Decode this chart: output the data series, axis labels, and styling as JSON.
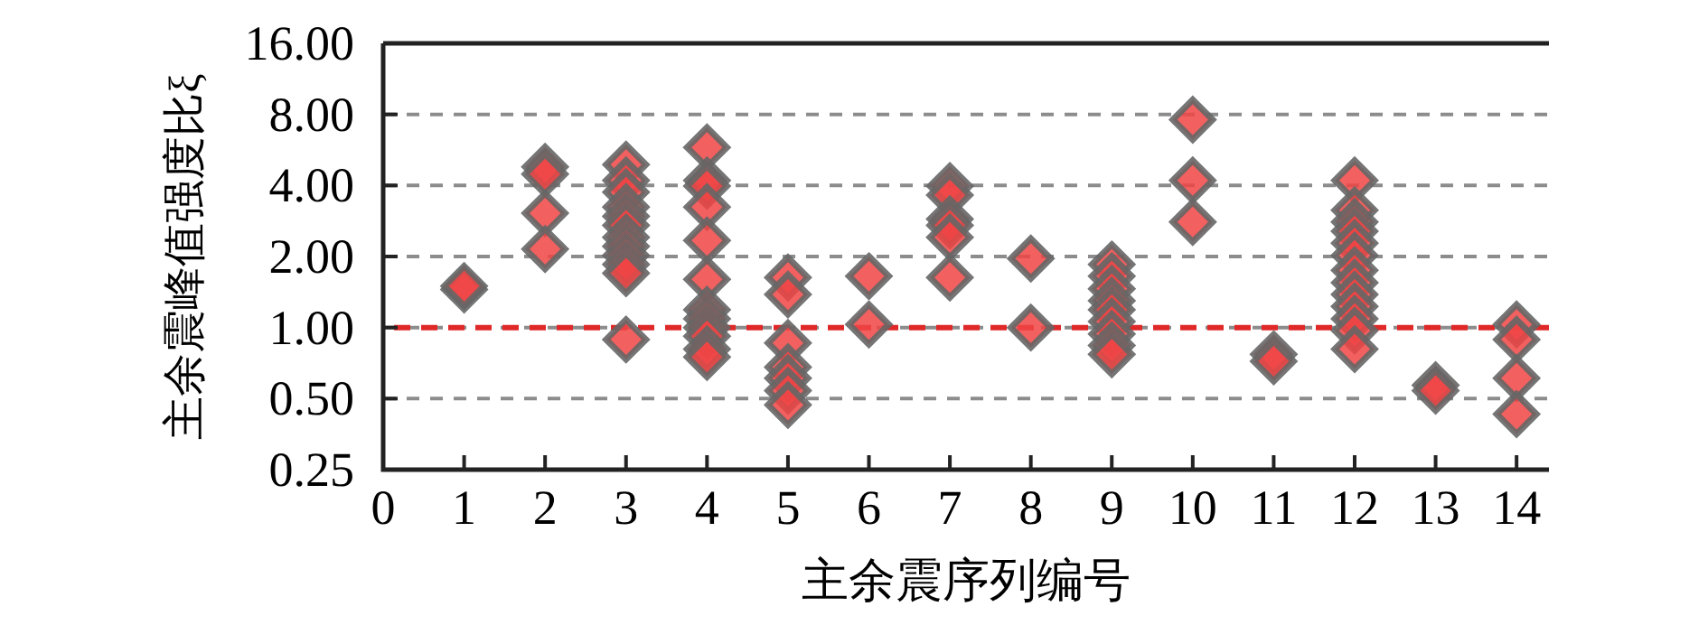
{
  "chart_data": {
    "type": "scatter",
    "xlabel": "主余震序列编号",
    "ylabel": "主余震峰值强度比ξ",
    "log": "y",
    "ylim": [
      0.25,
      16
    ],
    "yticks": [
      {
        "value": 0.25,
        "label": "0.25"
      },
      {
        "value": 0.5,
        "label": "0.50"
      },
      {
        "value": 1,
        "label": "1.00"
      },
      {
        "value": 2,
        "label": "2.00"
      },
      {
        "value": 4,
        "label": "4.00"
      },
      {
        "value": 8,
        "label": "8.00"
      },
      {
        "value": 16,
        "label": "16.00"
      }
    ],
    "xlim": [
      0,
      14.4
    ],
    "xticks": [
      0,
      1,
      2,
      3,
      4,
      5,
      6,
      7,
      8,
      9,
      10,
      11,
      12,
      13,
      14
    ],
    "grid": "y",
    "marker": "diamond",
    "ref_lines": [
      {
        "axis": "y",
        "value": 1,
        "color": "#e02828",
        "line_style": "dashed"
      }
    ],
    "series": [
      {
        "color": "#f04444",
        "x": [
          1,
          1,
          2,
          2,
          2,
          2,
          3,
          3,
          3,
          3,
          3,
          3,
          3,
          3,
          3,
          3,
          3,
          3,
          4,
          4,
          4,
          4,
          4,
          4,
          4,
          4,
          4,
          4,
          4,
          4,
          5,
          5,
          5,
          5,
          5,
          5,
          5,
          6,
          6,
          7,
          7,
          7,
          7,
          7,
          7,
          8,
          8,
          9,
          9,
          9,
          9,
          9,
          9,
          9,
          9,
          9,
          10,
          10,
          10,
          11,
          11,
          12,
          12,
          12,
          12,
          12,
          12,
          12,
          12,
          12,
          12,
          12,
          12,
          12,
          13,
          13,
          14,
          14,
          14,
          14
        ],
        "values": [
          1.45,
          1.5,
          4.8,
          4.47,
          3.05,
          2.15,
          4.9,
          4.2,
          3.75,
          3.24,
          2.96,
          2.71,
          2.41,
          2.21,
          2.02,
          1.85,
          1.7,
          0.89,
          5.8,
          4.2,
          3.98,
          3.24,
          2.34,
          1.6,
          1.19,
          1.09,
          1.0,
          0.92,
          0.81,
          0.75,
          1.63,
          1.38,
          0.86,
          0.68,
          0.61,
          0.54,
          0.47,
          1.65,
          1.03,
          3.98,
          3.64,
          2.88,
          2.71,
          2.41,
          1.63,
          1.96,
          1.0,
          1.85,
          1.65,
          1.46,
          1.3,
          1.19,
          1.06,
          0.94,
          0.84,
          0.77,
          7.6,
          4.2,
          2.8,
          0.77,
          0.72,
          4.2,
          3.14,
          2.8,
          2.56,
          2.28,
          2.02,
          1.75,
          1.55,
          1.38,
          1.23,
          1.09,
          0.97,
          0.81,
          0.57,
          0.54,
          1.03,
          0.89,
          0.61,
          0.43
        ]
      }
    ]
  }
}
